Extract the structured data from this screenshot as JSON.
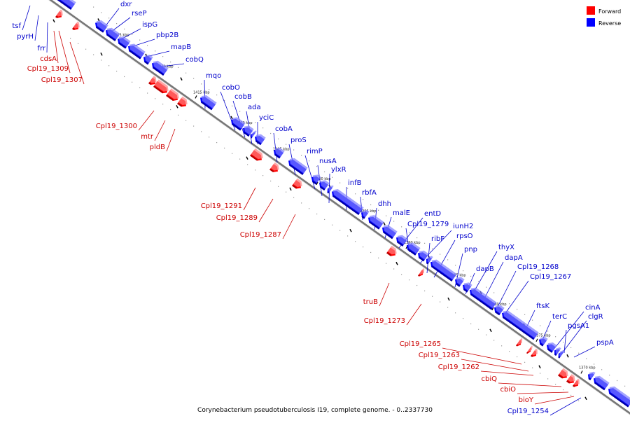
{
  "legend": [
    {
      "label": "Forward",
      "color": "#ff0000"
    },
    {
      "label": "Reverse",
      "color": "#0000ff"
    }
  ],
  "caption": "Corynebacterium pseudotuberculosis I19, complete genome. - 0..2337730",
  "colors": {
    "forward": "#ff0000",
    "reverse": "#0000ff",
    "forward_label": "#cc0000",
    "reverse_label": "#0000cc",
    "axis": "#777777"
  },
  "ticks": [
    "1425 kbp",
    "1420 kbp",
    "1415 kbp",
    "1410 kbp",
    "1405 kbp",
    "1400 kbp",
    "1395 kbp",
    "1390 kbp",
    "1385 kbp",
    "1380 kbp",
    "1375 kbp",
    "1370 kbp"
  ],
  "reverse_genes": [
    "tsf",
    "pyrH",
    "frr",
    "dxr",
    "rseP",
    "ispG",
    "pbp2B",
    "mapB",
    "cobQ",
    "mqo",
    "cobO",
    "cobB",
    "ada",
    "yciC",
    "cobA",
    "proS",
    "rimP",
    "nusA",
    "ylxR",
    "infB",
    "rbfA",
    "dhh",
    "malE",
    "entD",
    "Cpl19_1279",
    "iunH2",
    "ribF",
    "rpsO",
    "pnp",
    "thyX",
    "dapB",
    "dapA",
    "Cpl19_1268",
    "Cpl19_1267",
    "ftsK",
    "terC",
    "cinA",
    "clgR",
    "pgsA1",
    "pspA",
    "Cpl19_1254"
  ],
  "forward_genes": [
    "cdsA",
    "Cpl19_1309",
    "Cpl19_1307",
    "Cpl19_1300",
    "mtr",
    "pldB",
    "Cpl19_1291",
    "Cpl19_1289",
    "Cpl19_1287",
    "truB",
    "Cpl19_1273",
    "Cpl19_1265",
    "Cpl19_1263",
    "Cpl19_1262",
    "cbiQ",
    "cbiO",
    "bioY"
  ]
}
